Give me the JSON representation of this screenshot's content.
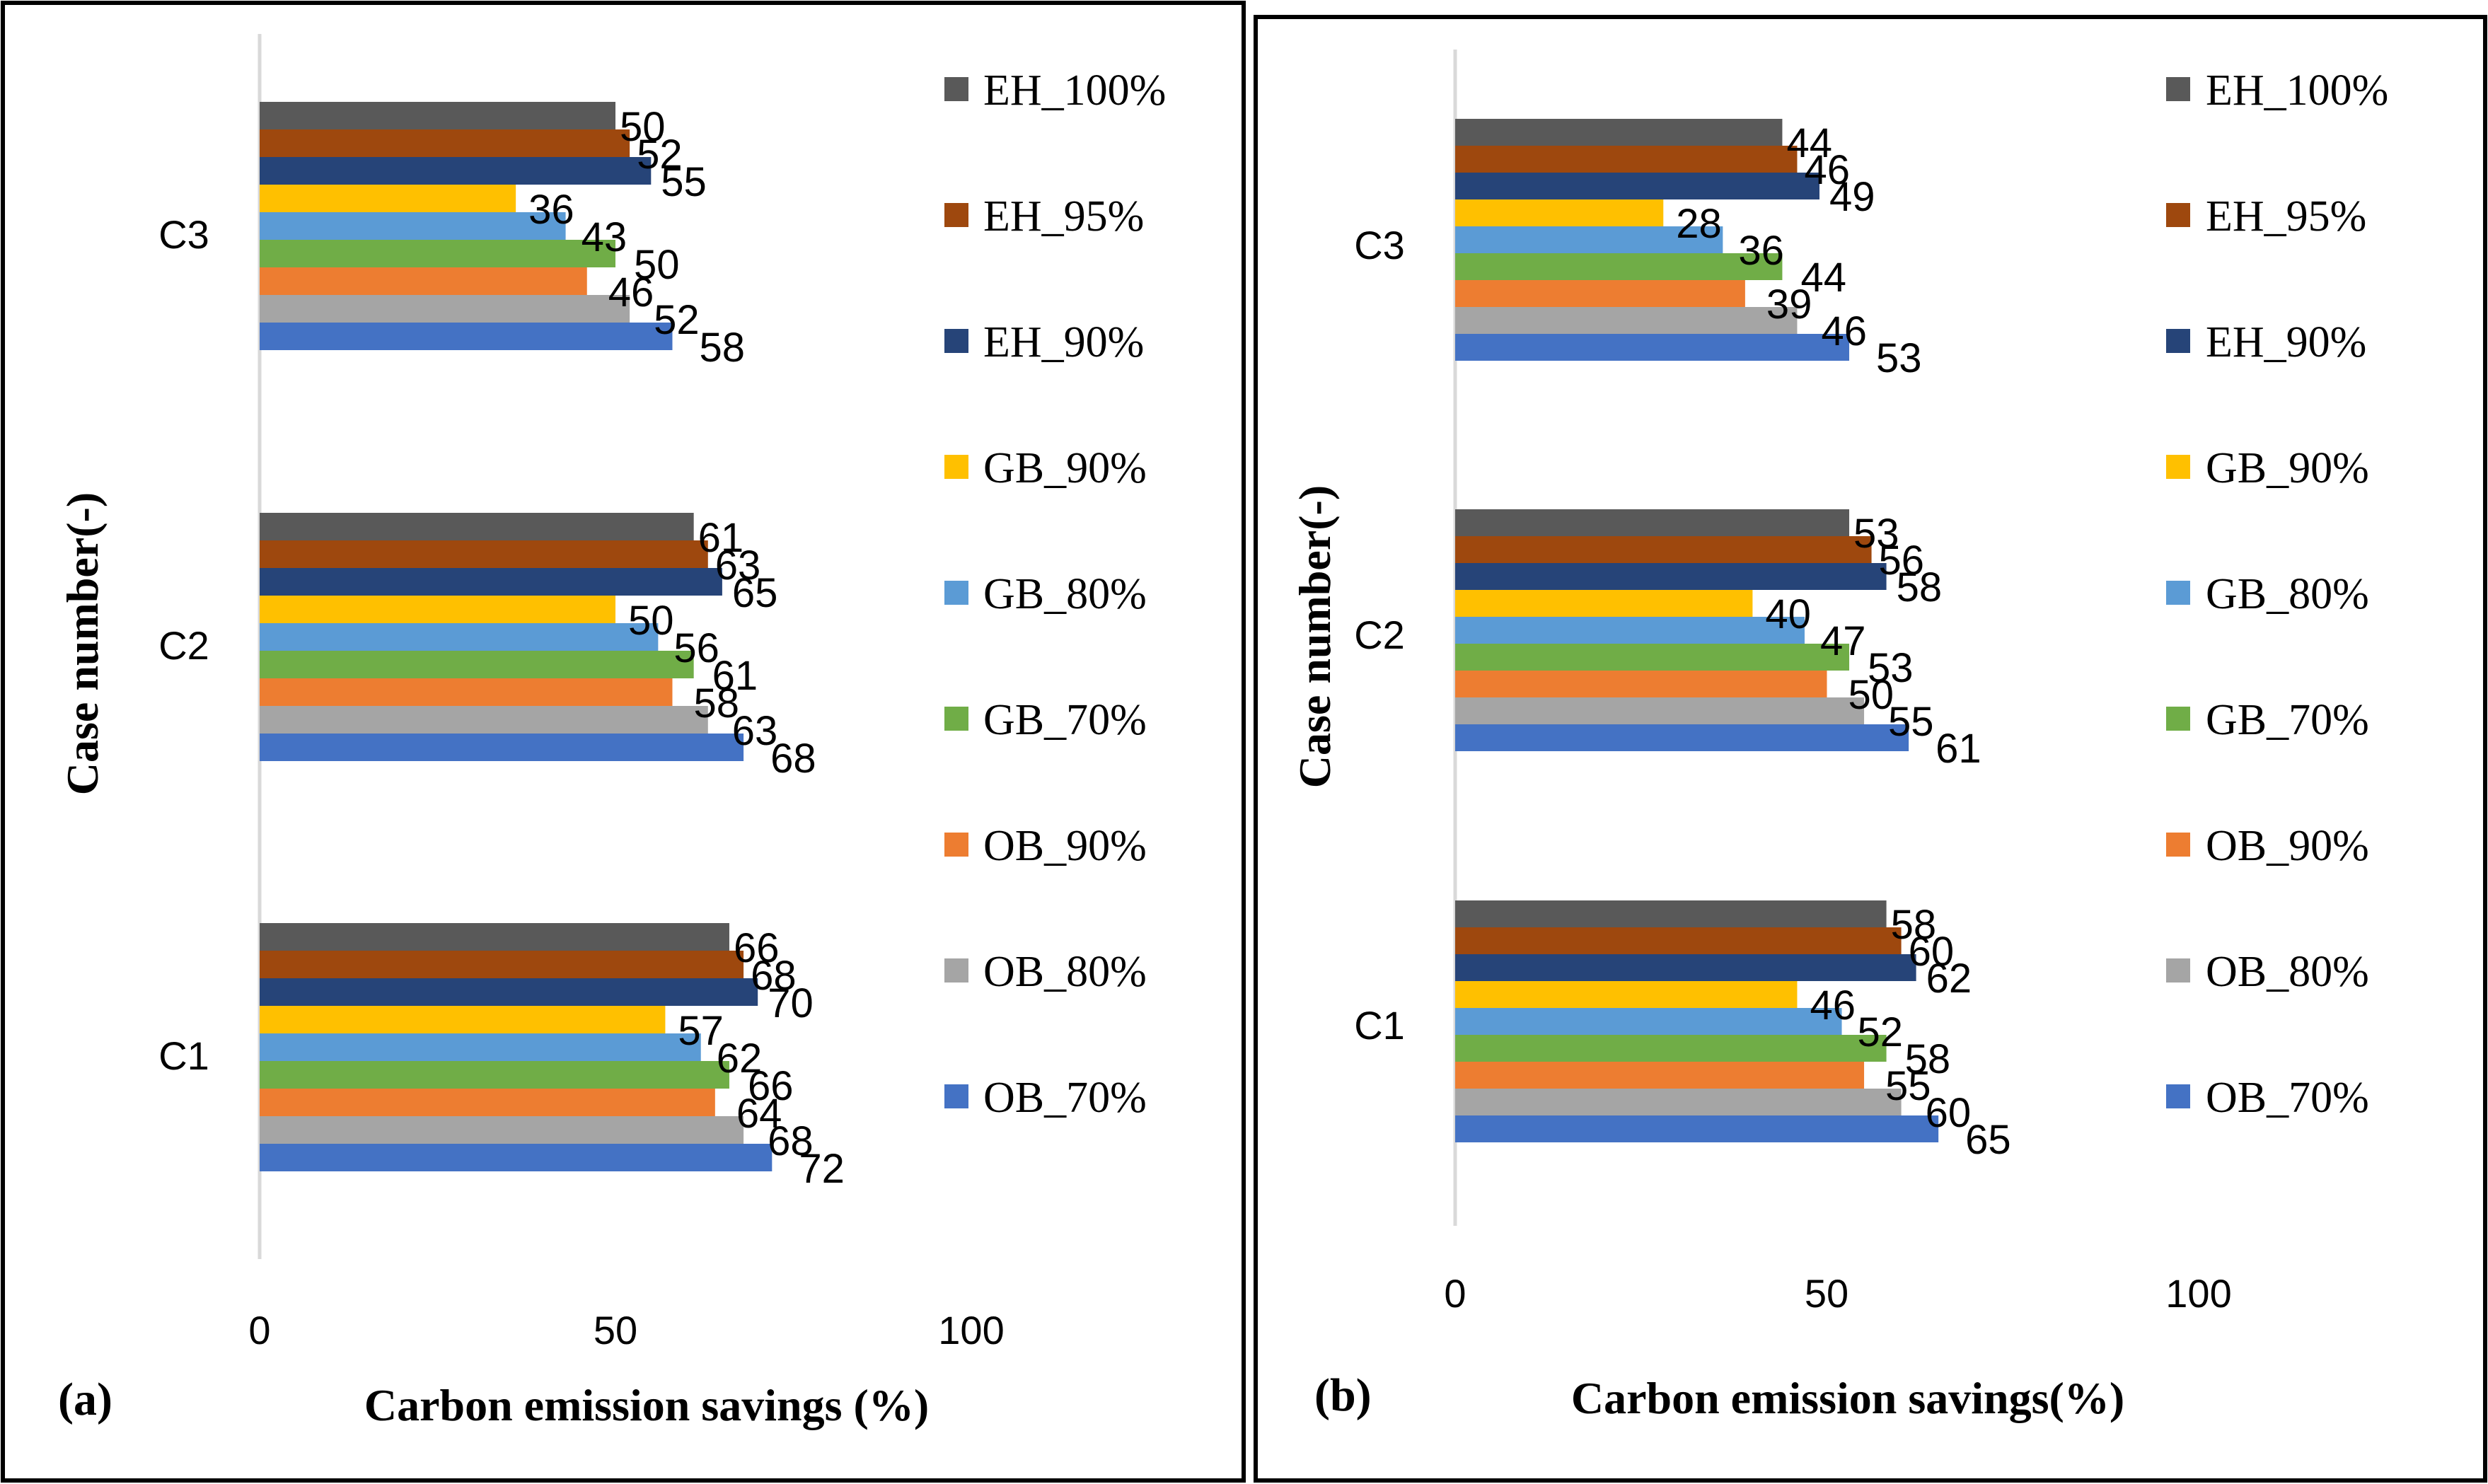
{
  "series_styles": [
    {
      "name": "EH_100%",
      "color": "#595959"
    },
    {
      "name": "EH_95%",
      "color": "#9e480e"
    },
    {
      "name": "EH_90%",
      "color": "#264478"
    },
    {
      "name": "GB_90%",
      "color": "#ffc000"
    },
    {
      "name": "GB_80%",
      "color": "#5b9bd5"
    },
    {
      "name": "GB_70%",
      "color": "#70ad47"
    },
    {
      "name": "OB_90%",
      "color": "#ed7d31"
    },
    {
      "name": "OB_80%",
      "color": "#a5a5a5"
    },
    {
      "name": "OB_70%",
      "color": "#4472c4"
    }
  ],
  "chart_data": [
    {
      "type": "bar",
      "orientation": "horizontal",
      "panel_label": "(a)",
      "xlabel": "Carbon emission savings (%)",
      "ylabel": "Case number(-)",
      "xlim": [
        0,
        100
      ],
      "xticks": [
        "0",
        "50",
        "100"
      ],
      "grid": false,
      "legend_position": "right",
      "categories": [
        "C3",
        "C2",
        "C1"
      ],
      "series": [
        {
          "name": "EH_100%",
          "values": [
            50,
            61,
            66
          ]
        },
        {
          "name": "EH_95%",
          "values": [
            52,
            63,
            68
          ]
        },
        {
          "name": "EH_90%",
          "values": [
            55,
            65,
            70
          ]
        },
        {
          "name": "GB_90%",
          "values": [
            36,
            50,
            57
          ]
        },
        {
          "name": "GB_80%",
          "values": [
            43,
            56,
            62
          ]
        },
        {
          "name": "GB_70%",
          "values": [
            50,
            61,
            66
          ]
        },
        {
          "name": "OB_90%",
          "values": [
            46,
            58,
            64
          ]
        },
        {
          "name": "OB_80%",
          "values": [
            52,
            63,
            68
          ]
        },
        {
          "name": "OB_70%",
          "values": [
            58,
            68,
            72
          ]
        }
      ]
    },
    {
      "type": "bar",
      "orientation": "horizontal",
      "panel_label": "(b)",
      "xlabel": "Carbon emission savings(%)",
      "ylabel": "Case number(-)",
      "xlim": [
        0,
        100
      ],
      "xticks": [
        "0",
        "50",
        "100"
      ],
      "grid": false,
      "legend_position": "right",
      "categories": [
        "C3",
        "C2",
        "C1"
      ],
      "series": [
        {
          "name": "EH_100%",
          "values": [
            44,
            53,
            58
          ]
        },
        {
          "name": "EH_95%",
          "values": [
            46,
            56,
            60
          ]
        },
        {
          "name": "EH_90%",
          "values": [
            49,
            58,
            62
          ]
        },
        {
          "name": "GB_90%",
          "values": [
            28,
            40,
            46
          ]
        },
        {
          "name": "GB_80%",
          "values": [
            36,
            47,
            52
          ]
        },
        {
          "name": "GB_70%",
          "values": [
            44,
            53,
            58
          ]
        },
        {
          "name": "OB_90%",
          "values": [
            39,
            50,
            55
          ]
        },
        {
          "name": "OB_80%",
          "values": [
            46,
            55,
            60
          ]
        },
        {
          "name": "OB_70%",
          "values": [
            53,
            61,
            65
          ]
        }
      ]
    }
  ]
}
